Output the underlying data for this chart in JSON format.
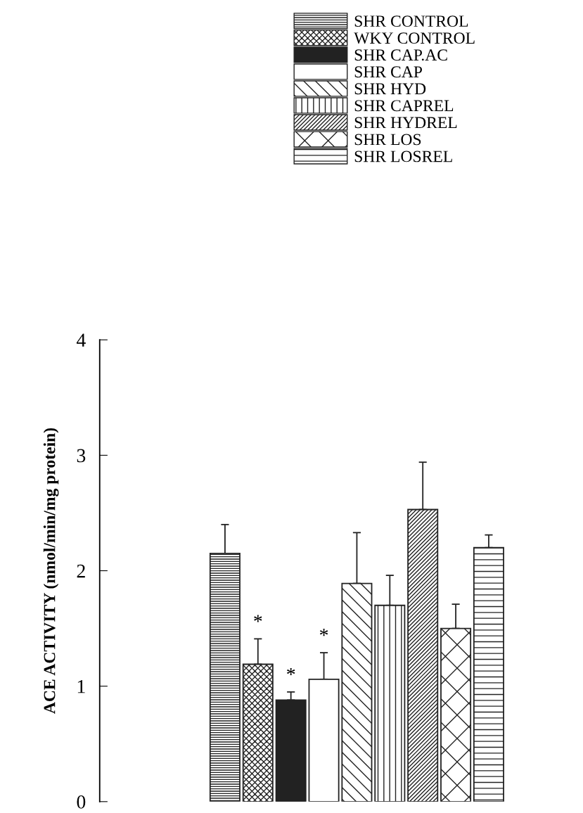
{
  "chart_data": {
    "type": "bar",
    "ylabel": "ACE ACTIVITY (nmol/min/mg protein)",
    "categories": [
      null
    ],
    "ylim": [
      0,
      4
    ],
    "yticks": [
      0,
      1,
      2,
      3,
      4
    ],
    "legend": "top",
    "grid": false,
    "tick_labels": "y",
    "series": [
      {
        "name": "SHR CONTROL",
        "color": "#222222",
        "values": [
          2.15
        ],
        "errors": [
          [
            2.15,
            2.4
          ]
        ]
      },
      {
        "name": "WKY CONTROL",
        "color": "#222222",
        "values": [
          1.19
        ],
        "errors": [
          [
            1.19,
            1.41
          ]
        ],
        "value_labels": [
          "*"
        ]
      },
      {
        "name": "SHR CAP.AC",
        "color": "#222222",
        "values": [
          0.88
        ],
        "errors": [
          [
            0.88,
            0.95
          ]
        ],
        "value_labels": [
          "*"
        ]
      },
      {
        "name": "SHR CAP",
        "color": "#ffffff",
        "values": [
          1.06
        ],
        "errors": [
          [
            1.06,
            1.29
          ]
        ],
        "value_labels": [
          "*"
        ]
      },
      {
        "name": "SHR HYD",
        "color": "#222222",
        "values": [
          1.89
        ],
        "errors": [
          [
            1.89,
            2.33
          ]
        ]
      },
      {
        "name": "SHR CAPREL",
        "color": "#222222",
        "values": [
          1.7
        ],
        "errors": [
          [
            1.7,
            1.96
          ]
        ]
      },
      {
        "name": "SHR HYDREL",
        "color": "#222222",
        "values": [
          2.53
        ],
        "errors": [
          [
            2.53,
            2.94
          ]
        ]
      },
      {
        "name": "SHR LOS",
        "color": "#222222",
        "values": [
          1.5
        ],
        "errors": [
          [
            1.5,
            1.71
          ]
        ]
      },
      {
        "name": "SHR LOSREL",
        "color": "#222222",
        "values": [
          2.2
        ],
        "errors": [
          [
            2.2,
            2.31
          ]
        ]
      }
    ]
  }
}
